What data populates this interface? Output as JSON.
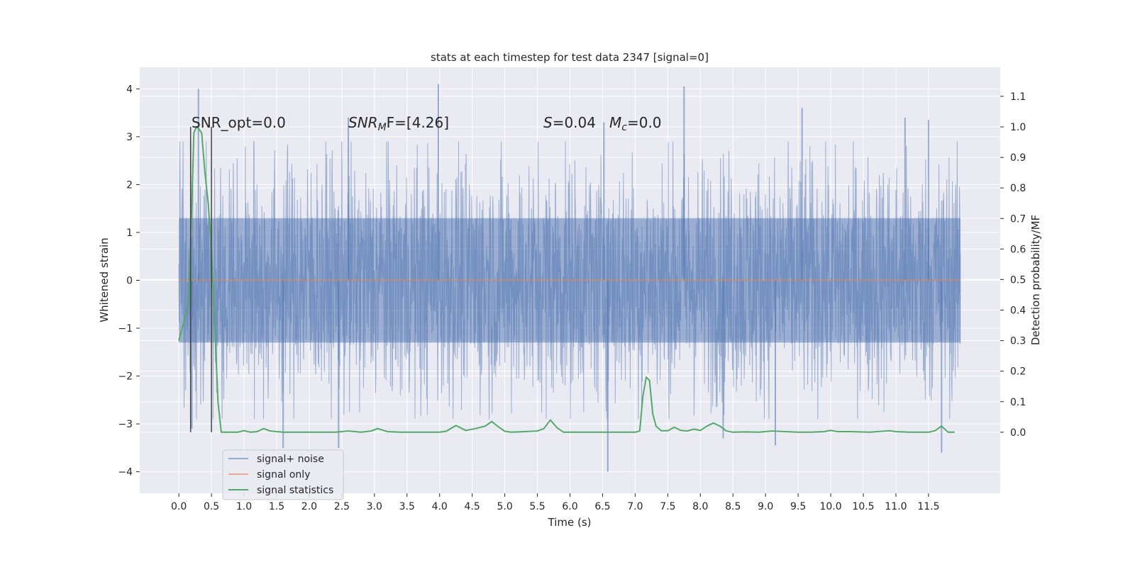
{
  "chart_data": {
    "type": "line",
    "title": "stats at each timestep for test data 2347 [signal=0]",
    "xlabel": "Time (s)",
    "ylabel": "Whitened strain",
    "y2label": "Detection probability/MF",
    "xlim": [
      -0.6,
      12.6
    ],
    "ylim": [
      -4.45,
      4.45
    ],
    "y2lim": [
      -0.2,
      1.195
    ],
    "xticks": [
      0.0,
      0.5,
      1.0,
      1.5,
      2.0,
      2.5,
      3.0,
      3.5,
      4.0,
      4.5,
      5.0,
      5.5,
      6.0,
      6.5,
      7.0,
      7.5,
      8.0,
      8.5,
      9.0,
      9.5,
      10.0,
      10.5,
      11.0,
      11.5
    ],
    "xtick_labels": [
      "0.0",
      "0.5",
      "1.0",
      "1.5",
      "2.0",
      "2.5",
      "3.0",
      "3.5",
      "4.0",
      "4.5",
      "5.0",
      "5.5",
      "6.0",
      "6.5",
      "7.0",
      "7.5",
      "8.0",
      "8.5",
      "9.0",
      "9.5",
      "10.0",
      "10.5",
      "11.0",
      "11.5"
    ],
    "yticks": [
      -4,
      -3,
      -2,
      -1,
      0,
      1,
      2,
      3,
      4
    ],
    "ytick_labels": [
      "−4",
      "−3",
      "−2",
      "−1",
      "0",
      "1",
      "2",
      "3",
      "4"
    ],
    "y2ticks": [
      0.0,
      0.1,
      0.2,
      0.3,
      0.4,
      0.5,
      0.6,
      0.7,
      0.8,
      0.9,
      1.0,
      1.1
    ],
    "y2tick_labels": [
      "0.0",
      "0.1",
      "0.2",
      "0.3",
      "0.4",
      "0.5",
      "0.6",
      "0.7",
      "0.8",
      "0.9",
      "1.0",
      "1.1"
    ],
    "grid": true,
    "legend_position": "lower-left",
    "annotations": {
      "snr_opt": "SNR_opt=0.0",
      "snr_mf_main": "SNR",
      "snr_mf_sub": "M",
      "snr_mf_tail": "F=[4.26]",
      "s_main": "S",
      "s_tail": "=0.04",
      "mc_main": "M",
      "mc_sub": "c",
      "mc_tail": "=0.0"
    },
    "series": [
      {
        "name": "signal+ noise",
        "color": "#4c72b0",
        "axis": "left",
        "x_range": [
          0.0,
          11.99
        ],
        "typical_amplitude": 1.3,
        "peaks": [
          {
            "x": 0.3,
            "y": 4.0
          },
          {
            "x": 2.6,
            "y": 3.4
          },
          {
            "x": 3.98,
            "y": 4.1
          },
          {
            "x": 6.52,
            "y": 3.3
          },
          {
            "x": 7.75,
            "y": 4.05
          },
          {
            "x": 9.56,
            "y": 3.6
          },
          {
            "x": 11.14,
            "y": 3.4
          },
          {
            "x": 11.5,
            "y": 3.35
          }
        ],
        "troughs": [
          {
            "x": 0.2,
            "y": -3.1
          },
          {
            "x": 1.6,
            "y": -3.5
          },
          {
            "x": 2.45,
            "y": -3.5
          },
          {
            "x": 6.58,
            "y": -4.0
          },
          {
            "x": 8.35,
            "y": -3.3
          },
          {
            "x": 9.15,
            "y": -3.45
          },
          {
            "x": 11.7,
            "y": -3.6
          }
        ]
      },
      {
        "name": "signal only",
        "color": "#dd8452",
        "axis": "left",
        "x": [
          0.0,
          11.99
        ],
        "y": [
          0.0,
          0.0
        ]
      },
      {
        "name": "signal statistics",
        "color": "#55a868",
        "axis": "right",
        "x": [
          0.0,
          0.05,
          0.1,
          0.15,
          0.2,
          0.23,
          0.27,
          0.3,
          0.35,
          0.4,
          0.45,
          0.5,
          0.55,
          0.6,
          0.65,
          0.72,
          0.8,
          0.9,
          1.0,
          1.1,
          1.2,
          1.3,
          1.4,
          1.5,
          1.6,
          1.7,
          1.8,
          2.0,
          2.2,
          2.4,
          2.6,
          2.8,
          2.95,
          3.05,
          3.2,
          3.4,
          3.6,
          3.8,
          4.0,
          4.1,
          4.25,
          4.4,
          4.55,
          4.7,
          4.8,
          4.9,
          5.0,
          5.1,
          5.3,
          5.5,
          5.6,
          5.7,
          5.8,
          5.9,
          6.0,
          6.2,
          6.5,
          6.8,
          7.0,
          7.07,
          7.12,
          7.17,
          7.22,
          7.27,
          7.32,
          7.4,
          7.5,
          7.6,
          7.7,
          7.8,
          7.9,
          8.0,
          8.1,
          8.2,
          8.3,
          8.4,
          8.5,
          8.7,
          8.9,
          9.1,
          9.3,
          9.5,
          9.7,
          9.9,
          10.0,
          10.1,
          10.3,
          10.6,
          10.9,
          11.0,
          11.2,
          11.4,
          11.5,
          11.6,
          11.7,
          11.8,
          11.9
        ],
        "y": [
          0.3,
          0.34,
          0.38,
          0.42,
          0.75,
          0.98,
          1.0,
          0.995,
          0.98,
          0.85,
          0.75,
          0.6,
          0.35,
          0.1,
          0.0,
          0.0,
          0.0,
          0.0,
          0.005,
          0.0,
          0.002,
          0.012,
          0.004,
          0.002,
          0.0,
          0.0,
          0.0,
          0.0,
          0.0,
          0.0,
          0.004,
          0.0,
          0.004,
          0.012,
          0.002,
          0.0,
          0.0,
          0.0,
          0.0,
          0.003,
          0.022,
          0.006,
          0.012,
          0.02,
          0.035,
          0.018,
          0.003,
          0.0,
          0.002,
          0.004,
          0.012,
          0.04,
          0.015,
          0.0,
          0.0,
          0.0,
          0.0,
          0.0,
          0.0,
          0.004,
          0.12,
          0.18,
          0.17,
          0.06,
          0.02,
          0.005,
          0.005,
          0.016,
          0.006,
          0.004,
          0.01,
          0.006,
          0.02,
          0.03,
          0.02,
          0.004,
          0.0,
          0.001,
          0.0,
          0.004,
          0.002,
          0.0,
          0.0,
          0.002,
          0.006,
          0.002,
          0.002,
          0.0,
          0.005,
          0.002,
          0.0,
          0.0,
          0.0,
          0.005,
          0.02,
          0.0,
          0.0
        ]
      }
    ],
    "markers_vertical": [
      0.18,
      0.5
    ]
  }
}
